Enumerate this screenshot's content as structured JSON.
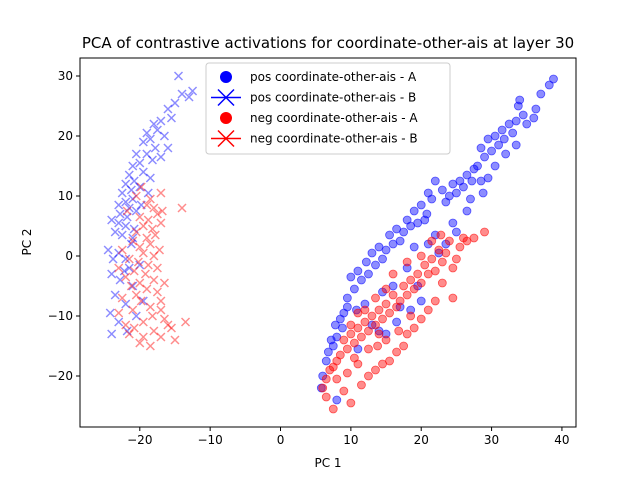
{
  "chart_data": {
    "type": "scatter",
    "title": "PCA of contrastive activations for coordinate-other-ais at layer 30",
    "xlabel": "PC 1",
    "ylabel": "PC 2",
    "xlim": [
      -28.5,
      42
    ],
    "ylim": [
      -28.5,
      33
    ],
    "xticks": [
      -20,
      -10,
      0,
      10,
      20,
      30,
      40
    ],
    "yticks": [
      -20,
      -10,
      0,
      10,
      20,
      30
    ],
    "grid": false,
    "legend_position": "top-center",
    "series": [
      {
        "name": "pos coordinate-other-ais - A",
        "marker": "circle",
        "color": "#0000ff",
        "points": [
          [
            38.8,
            29.5
          ],
          [
            38.2,
            28.5
          ],
          [
            37.0,
            27.0
          ],
          [
            36.3,
            24.5
          ],
          [
            34.0,
            26.0
          ],
          [
            34.5,
            23.5
          ],
          [
            33.8,
            25.0
          ],
          [
            33.5,
            22.5
          ],
          [
            32.5,
            22.0
          ],
          [
            33.0,
            20.5
          ],
          [
            31.5,
            21.0
          ],
          [
            31.0,
            18.5
          ],
          [
            31.8,
            19.5
          ],
          [
            30.5,
            20.0
          ],
          [
            30.0,
            17.5
          ],
          [
            29.5,
            19.5
          ],
          [
            29.0,
            16.5
          ],
          [
            28.5,
            18.0
          ],
          [
            28.0,
            15.0
          ],
          [
            27.5,
            14.5
          ],
          [
            28.5,
            12.5
          ],
          [
            27.2,
            12.5
          ],
          [
            26.5,
            13.5
          ],
          [
            26.0,
            11.5
          ],
          [
            25.5,
            12.5
          ],
          [
            25.0,
            10.5
          ],
          [
            24.5,
            12.0
          ],
          [
            24.0,
            10.0
          ],
          [
            23.0,
            11.0
          ],
          [
            23.5,
            9.0
          ],
          [
            22.0,
            12.5
          ],
          [
            21.5,
            9.5
          ],
          [
            21.0,
            10.5
          ],
          [
            20.8,
            7.0
          ],
          [
            20.5,
            6.0
          ],
          [
            20.0,
            8.5
          ],
          [
            19.5,
            5.5
          ],
          [
            19.0,
            7.5
          ],
          [
            18.5,
            5.0
          ],
          [
            18.0,
            6.0
          ],
          [
            17.5,
            4.0
          ],
          [
            17.0,
            2.5
          ],
          [
            16.5,
            4.5
          ],
          [
            16.0,
            2.0
          ],
          [
            15.5,
            3.5
          ],
          [
            15.0,
            1.0
          ],
          [
            14.5,
            -0.5
          ],
          [
            14.0,
            1.5
          ],
          [
            13.5,
            -1.5
          ],
          [
            13.0,
            0.5
          ],
          [
            12.5,
            -3.0
          ],
          [
            12.2,
            -1.0
          ],
          [
            11.5,
            -4.0
          ],
          [
            11.0,
            -2.5
          ],
          [
            10.5,
            -5.5
          ],
          [
            10.0,
            -3.5
          ],
          [
            9.5,
            -7.0
          ],
          [
            9.5,
            -8.5
          ],
          [
            9.0,
            -9.5
          ],
          [
            8.8,
            -12.0
          ],
          [
            8.5,
            -10.5
          ],
          [
            8.0,
            -13.5
          ],
          [
            7.8,
            -11.5
          ],
          [
            7.5,
            -15.0
          ],
          [
            7.2,
            -14.0
          ],
          [
            6.8,
            -16.0
          ],
          [
            6.5,
            -17.5
          ],
          [
            6.0,
            -20.0
          ],
          [
            5.8,
            -22.0
          ],
          [
            8.0,
            -24.0
          ],
          [
            11.0,
            -15.5
          ],
          [
            13.0,
            -11.5
          ],
          [
            14.0,
            -12.5
          ],
          [
            15.0,
            -13.0
          ],
          [
            16.5,
            -11.0
          ],
          [
            18.5,
            -9.0
          ],
          [
            20.0,
            -7.5
          ],
          [
            17.0,
            -8.5
          ],
          [
            19.5,
            -5.0
          ],
          [
            22.5,
            0.5
          ],
          [
            23.5,
            2.0
          ],
          [
            25.0,
            4.0
          ],
          [
            24.5,
            5.5
          ],
          [
            26.5,
            7.5
          ],
          [
            27.0,
            9.5
          ],
          [
            28.8,
            10.5
          ],
          [
            29.5,
            13.0
          ],
          [
            30.5,
            15.0
          ],
          [
            32.0,
            17.0
          ],
          [
            33.5,
            18.5
          ],
          [
            35.0,
            22.0
          ],
          [
            36.0,
            23.0
          ],
          [
            22.0,
            3.5
          ],
          [
            21.0,
            2.0
          ],
          [
            19.0,
            1.5
          ],
          [
            18.0,
            -2.0
          ],
          [
            16.0,
            -5.0
          ],
          [
            14.5,
            -6.0
          ],
          [
            12.0,
            -8.0
          ],
          [
            10.8,
            -9.0
          ]
        ]
      },
      {
        "name": "pos coordinate-other-ais - B",
        "marker": "x",
        "color": "#0000ff",
        "points": [
          [
            -14.5,
            30.0
          ],
          [
            -12.5,
            27.5
          ],
          [
            -13.0,
            26.5
          ],
          [
            -14.0,
            27.0
          ],
          [
            -15.0,
            25.5
          ],
          [
            -16.0,
            24.5
          ],
          [
            -15.5,
            23.0
          ],
          [
            -17.0,
            22.5
          ],
          [
            -17.5,
            21.0
          ],
          [
            -18.0,
            22.0
          ],
          [
            -16.5,
            20.0
          ],
          [
            -18.5,
            19.5
          ],
          [
            -19.5,
            19.0
          ],
          [
            -17.8,
            18.0
          ],
          [
            -19.0,
            17.0
          ],
          [
            -20.5,
            17.0
          ],
          [
            -18.2,
            16.0
          ],
          [
            -20.0,
            15.5
          ],
          [
            -21.0,
            15.0
          ],
          [
            -19.5,
            14.0
          ],
          [
            -21.5,
            13.5
          ],
          [
            -20.8,
            12.5
          ],
          [
            -18.5,
            13.0
          ],
          [
            -22.0,
            12.0
          ],
          [
            -21.2,
            11.0
          ],
          [
            -20.0,
            11.5
          ],
          [
            -22.5,
            10.5
          ],
          [
            -21.0,
            9.5
          ],
          [
            -22.0,
            9.0
          ],
          [
            -23.0,
            8.5
          ],
          [
            -21.5,
            8.0
          ],
          [
            -20.5,
            7.5
          ],
          [
            -22.8,
            7.0
          ],
          [
            -21.8,
            6.5
          ],
          [
            -24.0,
            6.0
          ],
          [
            -23.0,
            5.5
          ],
          [
            -22.0,
            5.0
          ],
          [
            -20.8,
            4.5
          ],
          [
            -23.5,
            4.0
          ],
          [
            -22.5,
            3.5
          ],
          [
            -21.0,
            3.0
          ],
          [
            -24.5,
            1.0
          ],
          [
            -23.0,
            0.5
          ],
          [
            -22.0,
            -0.5
          ],
          [
            -21.5,
            -2.0
          ],
          [
            -24.0,
            -3.0
          ],
          [
            -22.8,
            -4.0
          ],
          [
            -21.0,
            -5.0
          ],
          [
            -23.5,
            -6.5
          ],
          [
            -22.0,
            -8.0
          ],
          [
            -24.2,
            -9.5
          ],
          [
            -23.0,
            -11.0
          ],
          [
            -21.8,
            -12.5
          ],
          [
            -24.0,
            -13.0
          ],
          [
            -20.5,
            -10.0
          ],
          [
            -19.5,
            -7.5
          ],
          [
            -20.0,
            -1.5
          ],
          [
            -19.0,
            20.5
          ],
          [
            -17.0,
            16.5
          ],
          [
            -16.0,
            18.0
          ],
          [
            -18.8,
            10.5
          ],
          [
            -19.8,
            8.5
          ],
          [
            -21.2,
            2.0
          ],
          [
            -22.2,
            -2.5
          ],
          [
            -23.8,
            -0.5
          ]
        ]
      },
      {
        "name": "neg coordinate-other-ais - A",
        "marker": "circle",
        "color": "#ff0000",
        "points": [
          [
            29.0,
            4.0
          ],
          [
            26.0,
            3.0
          ],
          [
            25.5,
            1.5
          ],
          [
            24.0,
            2.5
          ],
          [
            23.5,
            0.5
          ],
          [
            23.0,
            -1.0
          ],
          [
            22.5,
            1.0
          ],
          [
            22.0,
            -2.5
          ],
          [
            21.5,
            -0.5
          ],
          [
            21.0,
            -3.0
          ],
          [
            20.5,
            -1.5
          ],
          [
            20.0,
            -4.5
          ],
          [
            19.5,
            -3.0
          ],
          [
            19.0,
            -5.5
          ],
          [
            18.5,
            -4.0
          ],
          [
            18.0,
            -6.5
          ],
          [
            17.5,
            -5.0
          ],
          [
            17.0,
            -7.5
          ],
          [
            16.5,
            -8.5
          ],
          [
            16.0,
            -6.5
          ],
          [
            15.5,
            -9.5
          ],
          [
            15.0,
            -8.0
          ],
          [
            14.5,
            -10.5
          ],
          [
            14.0,
            -9.0
          ],
          [
            13.5,
            -11.5
          ],
          [
            13.0,
            -10.0
          ],
          [
            12.5,
            -12.5
          ],
          [
            12.0,
            -11.0
          ],
          [
            11.5,
            -13.5
          ],
          [
            11.0,
            -12.0
          ],
          [
            10.5,
            -14.5
          ],
          [
            10.0,
            -13.0
          ],
          [
            9.5,
            -15.5
          ],
          [
            9.0,
            -14.0
          ],
          [
            8.5,
            -16.5
          ],
          [
            8.0,
            -17.5
          ],
          [
            7.5,
            -18.5
          ],
          [
            7.0,
            -19.0
          ],
          [
            6.5,
            -20.5
          ],
          [
            6.0,
            -22.0
          ],
          [
            6.5,
            -23.5
          ],
          [
            9.0,
            -22.5
          ],
          [
            10.0,
            -24.5
          ],
          [
            11.5,
            -21.5
          ],
          [
            12.5,
            -20.0
          ],
          [
            13.5,
            -19.0
          ],
          [
            14.5,
            -18.0
          ],
          [
            15.5,
            -17.5
          ],
          [
            16.5,
            -16.0
          ],
          [
            17.5,
            -15.0
          ],
          [
            18.0,
            -13.0
          ],
          [
            19.0,
            -12.0
          ],
          [
            20.0,
            -10.5
          ],
          [
            21.0,
            -9.0
          ],
          [
            22.0,
            -7.5
          ],
          [
            24.5,
            -7.0
          ],
          [
            23.0,
            -4.5
          ],
          [
            24.5,
            -2.0
          ],
          [
            25.0,
            -0.5
          ],
          [
            26.5,
            2.5
          ],
          [
            27.5,
            3.0
          ],
          [
            21.5,
            2.5
          ],
          [
            22.8,
            3.5
          ],
          [
            20.0,
            0.0
          ],
          [
            18.0,
            -1.0
          ],
          [
            16.0,
            -3.0
          ],
          [
            15.0,
            -5.5
          ],
          [
            13.5,
            -7.0
          ],
          [
            12.0,
            -9.0
          ],
          [
            11.0,
            -9.5
          ],
          [
            10.0,
            -11.5
          ],
          [
            12.5,
            -15.5
          ],
          [
            13.8,
            -15.0
          ],
          [
            15.0,
            -14.0
          ],
          [
            16.8,
            -12.5
          ],
          [
            18.5,
            -10.0
          ],
          [
            11.0,
            -18.0
          ],
          [
            9.5,
            -19.5
          ],
          [
            8.0,
            -20.5
          ],
          [
            7.5,
            -25.5
          ],
          [
            10.5,
            -17.0
          ],
          [
            14.0,
            -13.0
          ]
        ]
      },
      {
        "name": "neg coordinate-other-ais - B",
        "marker": "x",
        "color": "#ff0000",
        "points": [
          [
            -14.0,
            8.0
          ],
          [
            -17.0,
            10.5
          ],
          [
            -18.5,
            9.5
          ],
          [
            -18.0,
            8.0
          ],
          [
            -19.0,
            8.5
          ],
          [
            -17.5,
            7.0
          ],
          [
            -18.8,
            6.0
          ],
          [
            -20.0,
            6.5
          ],
          [
            -17.0,
            5.5
          ],
          [
            -19.5,
            5.0
          ],
          [
            -18.2,
            4.5
          ],
          [
            -20.5,
            4.0
          ],
          [
            -17.8,
            3.5
          ],
          [
            -19.0,
            3.0
          ],
          [
            -21.0,
            2.5
          ],
          [
            -18.5,
            2.0
          ],
          [
            -20.0,
            1.5
          ],
          [
            -17.2,
            1.0
          ],
          [
            -19.5,
            0.5
          ],
          [
            -18.0,
            0.0
          ],
          [
            -21.5,
            -0.5
          ],
          [
            -20.2,
            -1.0
          ],
          [
            -18.8,
            -1.5
          ],
          [
            -17.5,
            -2.0
          ],
          [
            -20.8,
            -2.5
          ],
          [
            -19.2,
            -3.0
          ],
          [
            -22.0,
            -3.5
          ],
          [
            -18.0,
            -4.0
          ],
          [
            -20.0,
            -4.5
          ],
          [
            -21.2,
            -5.0
          ],
          [
            -19.0,
            -5.5
          ],
          [
            -17.5,
            -6.0
          ],
          [
            -20.5,
            -6.5
          ],
          [
            -22.5,
            -7.0
          ],
          [
            -19.8,
            -7.5
          ],
          [
            -18.5,
            -8.5
          ],
          [
            -21.0,
            -9.0
          ],
          [
            -23.0,
            -9.5
          ],
          [
            -17.0,
            -9.0
          ],
          [
            -16.5,
            -10.5
          ],
          [
            -19.5,
            -11.0
          ],
          [
            -22.0,
            -11.5
          ],
          [
            -20.8,
            -12.0
          ],
          [
            -16.0,
            -11.5
          ],
          [
            -18.0,
            -12.5
          ],
          [
            -17.0,
            -13.5
          ],
          [
            -15.0,
            -14.0
          ],
          [
            -18.5,
            -15.0
          ],
          [
            -19.5,
            -13.5
          ],
          [
            -13.5,
            -11.0
          ],
          [
            -15.5,
            -12.0
          ],
          [
            -16.8,
            7.5
          ],
          [
            -20.5,
            10.0
          ],
          [
            -19.8,
            11.5
          ],
          [
            -21.8,
            7.5
          ],
          [
            -22.5,
            1.0
          ],
          [
            -23.0,
            -2.0
          ],
          [
            -16.5,
            -4.5
          ],
          [
            -17.0,
            -7.5
          ],
          [
            -20.0,
            -14.5
          ],
          [
            -21.5,
            -13.0
          ],
          [
            -18.2,
            -10.0
          ]
        ]
      }
    ]
  }
}
